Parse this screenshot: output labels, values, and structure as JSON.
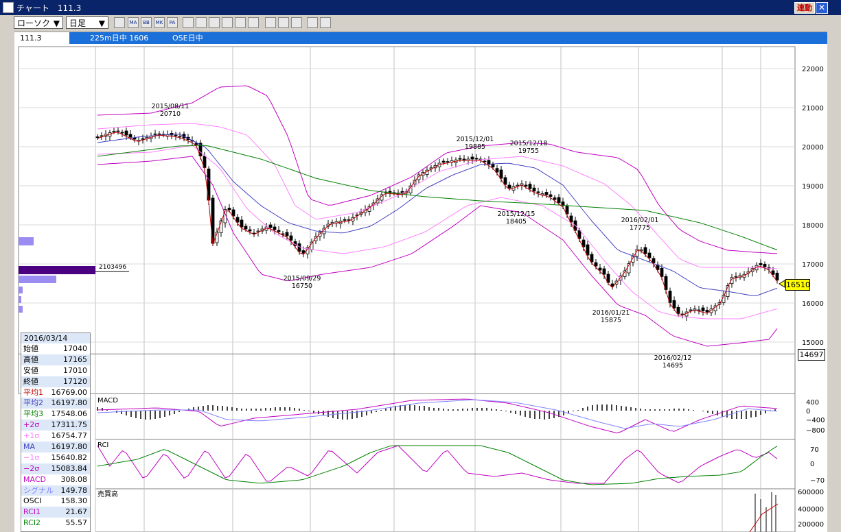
{
  "titlebar": {
    "title": "チャート",
    "code": "111.3",
    "link_label": "連動",
    "close_label": "✕"
  },
  "toolbar": {
    "chart_type": "ローソク",
    "period": "日足",
    "arrow": "▼",
    "tools": [
      "MA",
      "BB",
      "MK",
      "PA"
    ]
  },
  "infobar": {
    "code": "111.3",
    "label1": "225m日中 1606",
    "label2": "OSE日中"
  },
  "price_axis": [
    "22000",
    "21000",
    "20000",
    "19000",
    "18000",
    "17000",
    "16000",
    "15000"
  ],
  "macd_axis": [
    "400",
    "0",
    "−400",
    "−800"
  ],
  "rci_axis": [
    "70",
    "0",
    "−70"
  ],
  "vol_axis": [
    "600000",
    "400000",
    "200000"
  ],
  "panels": {
    "macd": "MACD",
    "rci": "RCI",
    "volume": "売買高"
  },
  "price_badge": "16510",
  "last_badge": "14697",
  "volume_profile_label": "2103496",
  "annotations": [
    {
      "date": "2015/08/11",
      "price": "20710"
    },
    {
      "date": "2015/09/29",
      "price": "16750"
    },
    {
      "date": "2015/12/01",
      "price": "19885"
    },
    {
      "date": "2015/12/18",
      "price": "19755"
    },
    {
      "date": "2015/12/15",
      "price": "18405"
    },
    {
      "date": "2016/02/01",
      "price": "17775"
    },
    {
      "date": "2016/01/21",
      "price": "15875"
    },
    {
      "date": "2016/02/12",
      "price": "14695"
    }
  ],
  "data_panel": {
    "date": "2016/03/14",
    "rows": [
      {
        "label": "始値",
        "value": "17040",
        "color": "#000000"
      },
      {
        "label": "高値",
        "value": "17165",
        "color": "#000000"
      },
      {
        "label": "安値",
        "value": "17010",
        "color": "#000000"
      },
      {
        "label": "終値",
        "value": "17120",
        "color": "#000000"
      },
      {
        "label": "平均1",
        "value": "16769.00",
        "color": "#c00000"
      },
      {
        "label": "平均2",
        "value": "16197.80",
        "color": "#4040c0"
      },
      {
        "label": "平均3",
        "value": "17548.06",
        "color": "#008000"
      },
      {
        "label": "+2σ",
        "value": "17311.75",
        "color": "#c000c0"
      },
      {
        "label": "+1σ",
        "value": "16754.77",
        "color": "#ff80ff"
      },
      {
        "label": "MA",
        "value": "16197.80",
        "color": "#4040c0"
      },
      {
        "label": "−1σ",
        "value": "15640.82",
        "color": "#ff80ff"
      },
      {
        "label": "−2σ",
        "value": "15083.84",
        "color": "#c000c0"
      },
      {
        "label": "MACD",
        "value": "308.08",
        "color": "#c000c0"
      },
      {
        "label": "シグナル",
        "value": "149.78",
        "color": "#8080ff"
      },
      {
        "label": "OSCI",
        "value": "158.30",
        "color": "#000000"
      },
      {
        "label": "RCI1",
        "value": "21.67",
        "color": "#c000c0"
      },
      {
        "label": "RCI2",
        "value": "55.57",
        "color": "#008000"
      }
    ]
  },
  "colors": {
    "ma1": "#c00000",
    "ma2": "#4040c0",
    "ma3": "#008000",
    "bb2": "#c000c0",
    "bb1": "#ff80ff",
    "profile": "#9a8cf0",
    "profile_peak": "#4b0082"
  }
}
